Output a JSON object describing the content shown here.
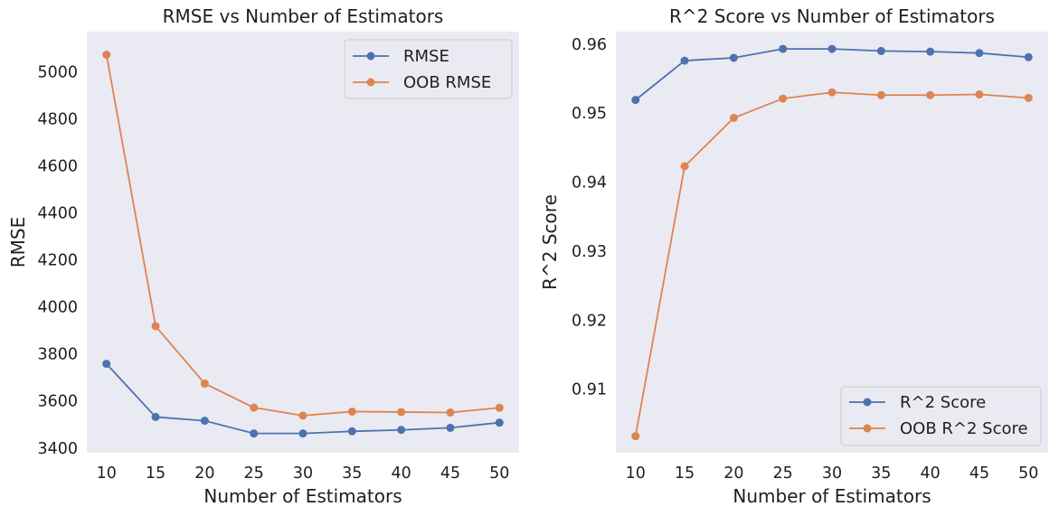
{
  "chart_data": [
    {
      "type": "line",
      "title": "RMSE vs Number of Estimators",
      "xlabel": "Number of Estimators",
      "ylabel": "RMSE",
      "x": [
        10,
        15,
        20,
        25,
        30,
        35,
        40,
        45,
        50
      ],
      "xlim": [
        8,
        52
      ],
      "ylim": [
        3380,
        5170
      ],
      "yticks": [
        3400,
        3600,
        3800,
        4000,
        4200,
        4400,
        4600,
        4800,
        5000
      ],
      "ytick_labels": [
        "3400",
        "3600",
        "3800",
        "4000",
        "4200",
        "4400",
        "4600",
        "4800",
        "5000"
      ],
      "grid": false,
      "legend_position": "top-right",
      "series": [
        {
          "name": "RMSE",
          "color": "#4c72b0",
          "values": [
            3758,
            3532,
            3516,
            3462,
            3462,
            3471,
            3477,
            3486,
            3508
          ]
        },
        {
          "name": "OOB RMSE",
          "color": "#dd8452",
          "values": [
            5072,
            3918,
            3674,
            3572,
            3538,
            3555,
            3553,
            3551,
            3571
          ]
        }
      ]
    },
    {
      "type": "line",
      "title": "R^2 Score vs Number of Estimators",
      "xlabel": "Number of Estimators",
      "ylabel": "R^2 Score",
      "x": [
        10,
        15,
        20,
        25,
        30,
        35,
        40,
        45,
        50
      ],
      "xlim": [
        8,
        52
      ],
      "ylim": [
        0.9008,
        0.9618
      ],
      "yticks": [
        0.91,
        0.92,
        0.93,
        0.94,
        0.95,
        0.96
      ],
      "ytick_labels": [
        "0.91",
        "0.92",
        "0.93",
        "0.94",
        "0.95",
        "0.96"
      ],
      "grid": false,
      "legend_position": "bottom-right",
      "series": [
        {
          "name": "R^2 Score",
          "color": "#4c72b0",
          "values": [
            0.9519,
            0.9576,
            0.958,
            0.9593,
            0.9593,
            0.959,
            0.9589,
            0.9587,
            0.9581
          ]
        },
        {
          "name": "OOB R^2 Score",
          "color": "#dd8452",
          "values": [
            0.9032,
            0.9423,
            0.9493,
            0.9521,
            0.953,
            0.9526,
            0.9526,
            0.9527,
            0.9522
          ]
        }
      ]
    }
  ]
}
